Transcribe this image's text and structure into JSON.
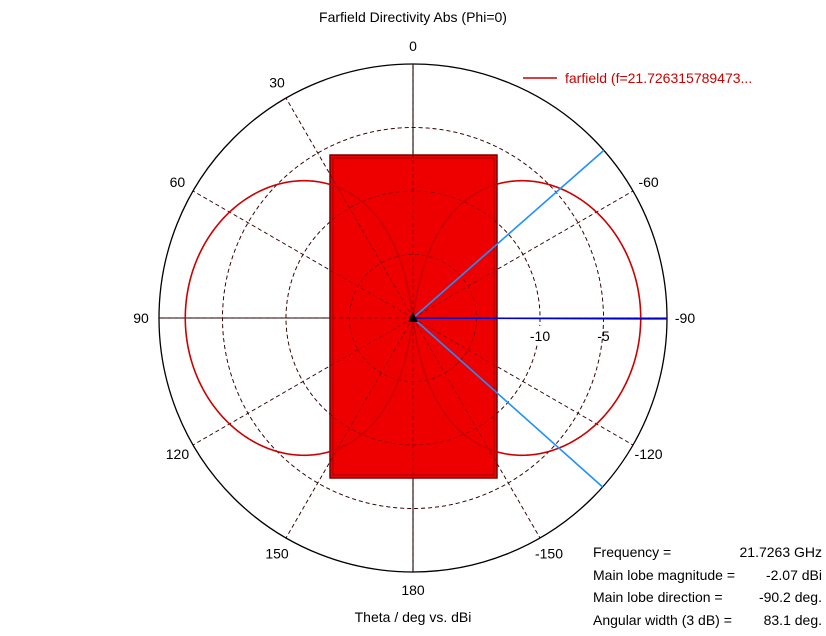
{
  "chart_data": {
    "type": "polar",
    "title": "Farfield Directivity Abs (Phi=0)",
    "xlabel": "Theta / deg vs. dBi",
    "angle_ticks": [
      {
        "deg": 0,
        "label": "0"
      },
      {
        "deg": 30,
        "label": "30"
      },
      {
        "deg": 60,
        "label": "60"
      },
      {
        "deg": 90,
        "label": "90"
      },
      {
        "deg": 120,
        "label": "120"
      },
      {
        "deg": 150,
        "label": "150"
      },
      {
        "deg": 180,
        "label": "180"
      },
      {
        "deg": -150,
        "label": "-150"
      },
      {
        "deg": -120,
        "label": "-120"
      },
      {
        "deg": -90,
        "label": "-90"
      },
      {
        "deg": -60,
        "label": "-60"
      }
    ],
    "radial_range": [
      -20,
      0
    ],
    "radial_ticks": [
      {
        "value": -15,
        "label": ""
      },
      {
        "value": -10,
        "label": "-10"
      },
      {
        "value": -5,
        "label": "-5"
      },
      {
        "value": 0,
        "label": ""
      }
    ],
    "series": [
      {
        "name": "farfield (f=21.726315789473...",
        "color": "#cc0000",
        "pattern": "dipole",
        "peak_dbi": -2.07,
        "peak_direction_deg": -90.2
      }
    ],
    "markers": {
      "main_lobe_direction_deg": -90.2,
      "beamwidth_deg": 83.1,
      "beam_edges_deg": [
        -48.7,
        -131.7
      ]
    },
    "grid": true,
    "legend_position": "top-right",
    "annotations": [
      {
        "label": "Frequency =",
        "value": "21.7263 GHz"
      },
      {
        "label": "Main lobe magnitude =",
        "value": "-2.07 dBi"
      },
      {
        "label": "Main lobe direction =",
        "value": "-90.2 deg."
      },
      {
        "label": "Angular width (3 dB) =",
        "value": "83.1 deg."
      }
    ]
  }
}
